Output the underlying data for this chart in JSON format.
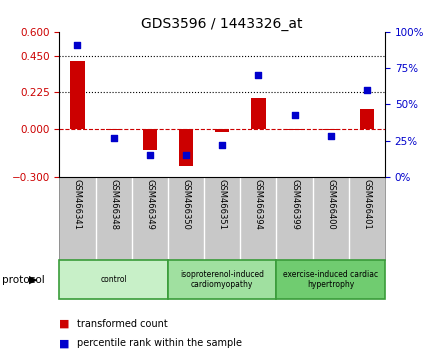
{
  "title": "GDS3596 / 1443326_at",
  "samples": [
    "GSM466341",
    "GSM466348",
    "GSM466349",
    "GSM466350",
    "GSM466351",
    "GSM466394",
    "GSM466399",
    "GSM466400",
    "GSM466401"
  ],
  "transformed_count": [
    0.42,
    -0.01,
    -0.13,
    -0.23,
    -0.02,
    0.19,
    -0.01,
    -0.01,
    0.12
  ],
  "percentile_rank_pct": [
    91,
    27,
    15,
    15,
    22,
    70,
    43,
    28,
    60
  ],
  "ylim_left": [
    -0.3,
    0.6
  ],
  "ylim_right": [
    0,
    100
  ],
  "yticks_left": [
    -0.3,
    0,
    0.225,
    0.45,
    0.6
  ],
  "yticks_right": [
    0,
    25,
    50,
    75,
    100
  ],
  "hlines": [
    0.225,
    0.45
  ],
  "groups": [
    {
      "label": "control",
      "start": 0,
      "end": 3,
      "color": "#c8f0c8"
    },
    {
      "label": "isoproterenol-induced\ncardiomyopathy",
      "start": 3,
      "end": 6,
      "color": "#a0e0a0"
    },
    {
      "label": "exercise-induced cardiac\nhypertrophy",
      "start": 6,
      "end": 9,
      "color": "#70cc70"
    }
  ],
  "bar_color": "#cc0000",
  "dot_color": "#0000cc",
  "bar_width": 0.4,
  "dot_size": 22,
  "protocol_label": "protocol",
  "legend_bar": "transformed count",
  "legend_dot": "percentile rank within the sample",
  "bg_color": "#ffffff",
  "tick_label_color_left": "#cc0000",
  "tick_label_color_right": "#0000cc",
  "zero_line_color": "#cc0000",
  "dotted_line_color": "#000000",
  "label_bg_color": "#c8c8c8",
  "label_border_color": "#888888"
}
